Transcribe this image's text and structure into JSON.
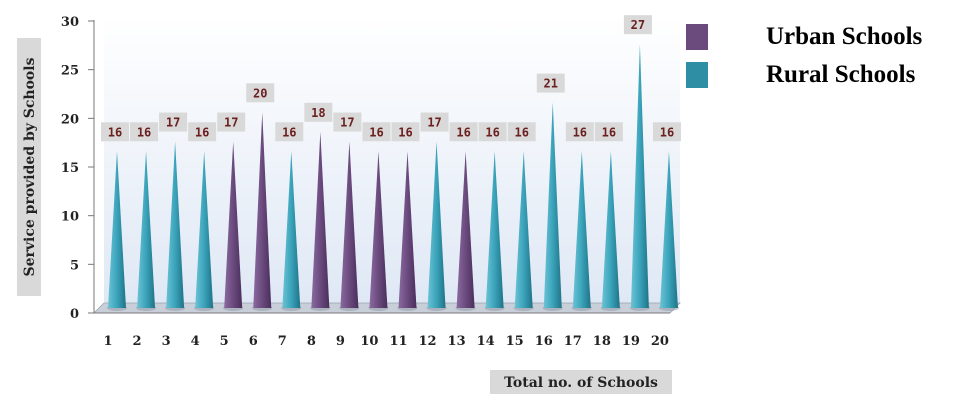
{
  "chart_data": {
    "type": "bar",
    "xlabel": "Total no. of Schools",
    "ylabel": "Service provided by Schools",
    "ylim": [
      0,
      30
    ],
    "yticks": [
      0,
      5,
      10,
      15,
      20,
      25,
      30
    ],
    "categories": [
      "1",
      "2",
      "3",
      "4",
      "5",
      "6",
      "7",
      "8",
      "9",
      "10",
      "11",
      "12",
      "13",
      "14",
      "15",
      "16",
      "17",
      "18",
      "19",
      "20"
    ],
    "values": [
      16,
      16,
      17,
      16,
      17,
      20,
      16,
      18,
      17,
      16,
      16,
      17,
      16,
      16,
      16,
      21,
      16,
      16,
      27,
      16
    ],
    "school_type": [
      "Rural Schools",
      "Rural Schools",
      "Rural Schools",
      "Rural Schools",
      "Urban Schools",
      "Urban Schools",
      "Rural Schools",
      "Urban Schools",
      "Urban Schools",
      "Urban Schools",
      "Urban Schools",
      "Rural Schools",
      "Urban Schools",
      "Rural Schools",
      "Rural Schools",
      "Rural Schools",
      "Rural Schools",
      "Rural Schools",
      "Rural Schools",
      "Rural Schools"
    ],
    "data_labels": [
      "16",
      "16",
      "17",
      "16",
      "17",
      "20",
      "16",
      "18",
      "17",
      "16",
      "16",
      "17",
      "16",
      "16",
      "16",
      "21",
      "16",
      "16",
      "27",
      "16"
    ],
    "legend": [
      {
        "name": "Urban Schools",
        "color": "#6b4a7e"
      },
      {
        "name": "Rural Schools",
        "color": "#2e8ea3"
      }
    ],
    "legend_position": "right",
    "grid": false
  }
}
